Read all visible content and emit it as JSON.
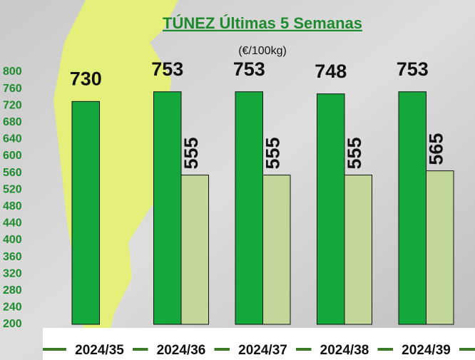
{
  "chart_data": {
    "type": "bar",
    "title": "TÚNEZ Últimas 5 Semanas",
    "subtitle": "(€/100kg)",
    "categories": [
      "2024/35",
      "2024/36",
      "2024/37",
      "2024/38",
      "2024/39"
    ],
    "series": [
      {
        "color": "#14a83c",
        "values": [
          730,
          753,
          753,
          748,
          753
        ]
      },
      {
        "color": "#c4d79b",
        "values": [
          null,
          555,
          555,
          555,
          565
        ]
      }
    ],
    "ylim": [
      200,
      800
    ],
    "yticks": [
      200,
      240,
      280,
      320,
      360,
      400,
      440,
      480,
      520,
      560,
      600,
      640,
      680,
      720,
      760,
      800
    ],
    "grid": false
  }
}
